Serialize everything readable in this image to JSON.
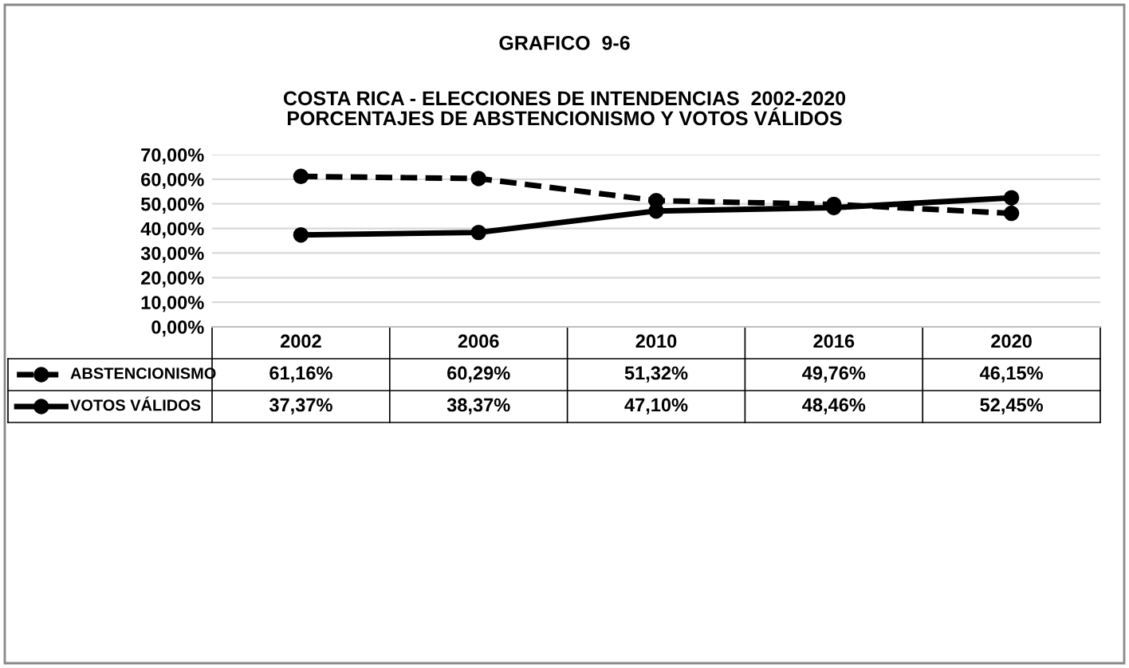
{
  "chart_data": {
    "type": "line",
    "title": "GRAFICO  9-6",
    "subtitle": "COSTA RICA - ELECCIONES DE INTENDENCIAS  2002-2020\nPORCENTAJES DE ABSTENCIONISMO Y VOTOS VÁLIDOS",
    "categories": [
      "2002",
      "2006",
      "2010",
      "2016",
      "2020"
    ],
    "series": [
      {
        "name": "ABSTENCIONISMO",
        "color": "#000000",
        "line_style": "dashed",
        "values": [
          61.16,
          60.29,
          51.32,
          49.76,
          46.15
        ],
        "value_labels": [
          "61,16%",
          "60,29%",
          "51,32%",
          "49,76%",
          "46,15%"
        ]
      },
      {
        "name": "VOTOS VÁLIDOS",
        "color": "#000000",
        "line_style": "solid",
        "values": [
          37.37,
          38.37,
          47.1,
          48.46,
          52.45
        ],
        "value_labels": [
          "37,37%",
          "38,37%",
          "47,10%",
          "48,46%",
          "52,45%"
        ]
      }
    ],
    "ylim": [
      0,
      70
    ],
    "yticks": [
      {
        "value": 0,
        "label": "0,00%"
      },
      {
        "value": 10,
        "label": "10,00%"
      },
      {
        "value": 20,
        "label": "20,00%"
      },
      {
        "value": 30,
        "label": "30,00%"
      },
      {
        "value": 40,
        "label": "40,00%"
      },
      {
        "value": 50,
        "label": "50,00%"
      },
      {
        "value": 60,
        "label": "60,00%"
      },
      {
        "value": 70,
        "label": "70,00%"
      }
    ],
    "grid": "y",
    "marker": "circle",
    "legend": "bottom"
  }
}
